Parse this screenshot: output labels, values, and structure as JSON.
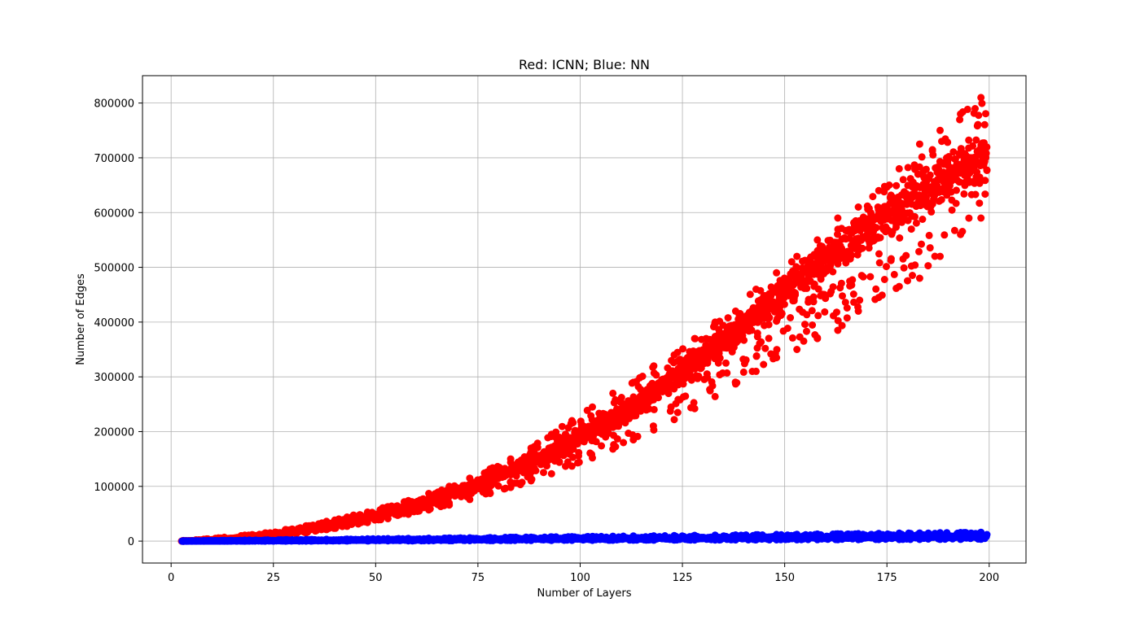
{
  "chart_data": {
    "type": "scatter",
    "title": "Red: ICNN; Blue: NN",
    "xlabel": "Number of Layers",
    "ylabel": "Number of Edges",
    "xlim": [
      -7,
      209
    ],
    "ylim": [
      -40000,
      850000
    ],
    "xticks": [
      0,
      25,
      50,
      75,
      100,
      125,
      150,
      175,
      200
    ],
    "xtick_labels": [
      "0",
      "25",
      "50",
      "75",
      "100",
      "125",
      "150",
      "175",
      "200"
    ],
    "yticks": [
      0,
      100000,
      200000,
      300000,
      400000,
      500000,
      600000,
      700000,
      800000
    ],
    "ytick_labels": [
      "0",
      "100000",
      "200000",
      "300000",
      "400000",
      "500000",
      "600000",
      "700000",
      "800000"
    ],
    "grid": true,
    "legend": "none",
    "series": [
      {
        "color": "#ff0000",
        "x": [
          3,
          8,
          13,
          18,
          23,
          28,
          33,
          38,
          43,
          48,
          53,
          58,
          63,
          68,
          73,
          78,
          83,
          88,
          93,
          98,
          103,
          108,
          113,
          118,
          123,
          128,
          133,
          138,
          143,
          148,
          153,
          158,
          163,
          168,
          173,
          178,
          183,
          188,
          193,
          198
        ],
        "y": [
          0,
          1500,
          3500,
          6500,
          10000,
          15000,
          21000,
          28000,
          35000,
          43000,
          52000,
          62000,
          73000,
          85000,
          98000,
          112000,
          128000,
          145000,
          163000,
          183000,
          203000,
          225000,
          248000,
          272000,
          298000,
          325000,
          353000,
          382000,
          412000,
          443000,
          475000,
          508000,
          530000,
          560000,
          585000,
          610000,
          635000,
          655000,
          680000,
          700000
        ],
        "y_min": [
          0,
          0,
          1000,
          3000,
          6000,
          10000,
          15000,
          21000,
          27000,
          34000,
          41000,
          49000,
          57000,
          66000,
          76000,
          87000,
          98000,
          110000,
          123000,
          137000,
          152000,
          168000,
          185000,
          203000,
          222000,
          242000,
          264000,
          287000,
          310000,
          335000,
          350000,
          370000,
          385000,
          420000,
          445000,
          465000,
          480000,
          520000,
          560000,
          590000
        ],
        "y_max": [
          1000,
          3500,
          7000,
          11000,
          15000,
          21000,
          28000,
          36000,
          44000,
          53000,
          63000,
          74000,
          87000,
          100000,
          115000,
          132000,
          150000,
          170000,
          195000,
          220000,
          245000,
          270000,
          290000,
          320000,
          340000,
          370000,
          400000,
          420000,
          460000,
          490000,
          520000,
          550000,
          590000,
          610000,
          640000,
          680000,
          725000,
          750000,
          780000,
          810000
        ]
      },
      {
        "color": "#0000ff",
        "x": [
          3,
          8,
          13,
          18,
          23,
          28,
          33,
          38,
          43,
          48,
          53,
          58,
          63,
          68,
          73,
          78,
          83,
          88,
          93,
          98,
          103,
          108,
          113,
          118,
          123,
          128,
          133,
          138,
          143,
          148,
          153,
          158,
          163,
          168,
          173,
          178,
          183,
          188,
          193,
          198
        ],
        "y": [
          0,
          200,
          400,
          600,
          800,
          1000,
          1300,
          1500,
          1700,
          2000,
          2200,
          2400,
          2700,
          2900,
          3100,
          3300,
          3600,
          3800,
          4000,
          4200,
          4400,
          4700,
          4900,
          5100,
          5300,
          5500,
          5800,
          6000,
          6200,
          6400,
          6600,
          6900,
          7100,
          7300,
          7500,
          7700,
          8000,
          8200,
          8400,
          8600
        ],
        "y_min": [
          0,
          0,
          0,
          0,
          0,
          0,
          100,
          200,
          300,
          400,
          500,
          600,
          700,
          800,
          900,
          1000,
          1100,
          1200,
          1300,
          1400,
          1500,
          1600,
          1700,
          1800,
          1900,
          2000,
          2100,
          2200,
          2300,
          2400,
          2500,
          2600,
          2700,
          2800,
          2900,
          3000,
          3100,
          3200,
          3300,
          3400
        ],
        "y_max": [
          500,
          900,
          1300,
          1700,
          2100,
          2500,
          2900,
          3300,
          3700,
          4100,
          4500,
          4900,
          5300,
          5700,
          6100,
          6500,
          6900,
          7300,
          7700,
          8100,
          8500,
          8900,
          9300,
          9700,
          10100,
          10500,
          10900,
          11300,
          11700,
          12100,
          12500,
          12900,
          13300,
          13700,
          14100,
          14500,
          14900,
          15300,
          15700,
          16100
        ]
      }
    ]
  }
}
